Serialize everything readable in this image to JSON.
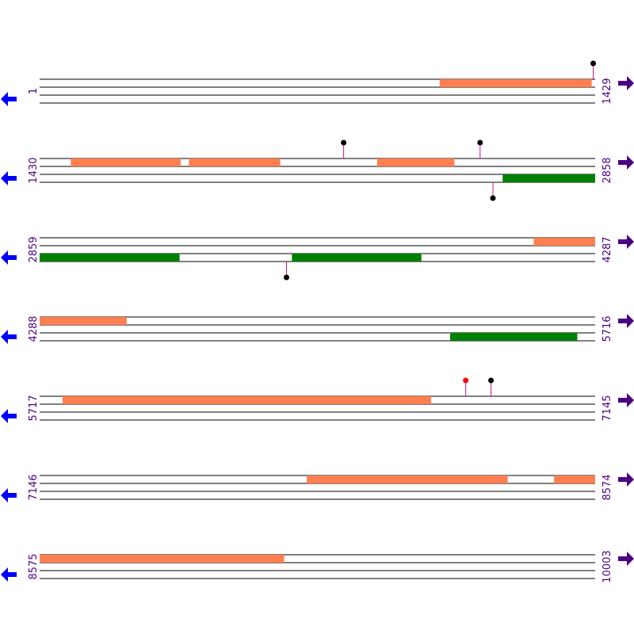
{
  "map": {
    "colors": {
      "forward_feature": "#ff7f50",
      "reverse_feature": "#008000",
      "track_line": "#000000",
      "marker_stem": "#c71585",
      "marker_default": "#000000",
      "marker_highlight": "#ff0000",
      "forward_arrow": "#4b0082",
      "reverse_arrow": "#0000ff"
    },
    "rows": [
      {
        "start_label": "1",
        "end_label": "1429",
        "start": 1,
        "end": 1429,
        "forward": [
          [
            1030,
            1420
          ]
        ],
        "reverse": [],
        "markers_above": [
          {
            "pos": 1425,
            "color": "marker_default"
          }
        ],
        "markers_below": []
      },
      {
        "start_label": "1430",
        "end_label": "2858",
        "start": 1430,
        "end": 2858,
        "forward": [
          [
            1510,
            1792
          ],
          [
            1814,
            2048
          ],
          [
            2298,
            2496
          ]
        ],
        "reverse": [
          [
            2621,
            2858
          ]
        ],
        "markers_above": [
          {
            "pos": 2212,
            "color": "marker_default"
          },
          {
            "pos": 2563,
            "color": "marker_default"
          }
        ],
        "markers_below": [
          {
            "pos": 2596,
            "color": "marker_default"
          }
        ]
      },
      {
        "start_label": "2859",
        "end_label": "4287",
        "start": 2859,
        "end": 4287,
        "forward": [
          [
            4130,
            4287
          ]
        ],
        "reverse": [
          [
            2859,
            3218
          ],
          [
            3508,
            3840
          ]
        ],
        "markers_above": [],
        "markers_below": [
          {
            "pos": 3494,
            "color": "marker_default"
          }
        ]
      },
      {
        "start_label": "4288",
        "end_label": "5716",
        "start": 4288,
        "end": 5716,
        "forward": [
          [
            4288,
            4511
          ]
        ],
        "reverse": [
          [
            5344,
            5670
          ]
        ],
        "markers_above": [],
        "markers_below": []
      },
      {
        "start_label": "5717",
        "end_label": "7145",
        "start": 5717,
        "end": 7145,
        "forward": [
          [
            5776,
            6723
          ]
        ],
        "reverse": [],
        "markers_above": [
          {
            "pos": 6813,
            "color": "marker_highlight"
          },
          {
            "pos": 6878,
            "color": "marker_default"
          }
        ],
        "markers_below": []
      },
      {
        "start_label": "7146",
        "end_label": "8574",
        "start": 7146,
        "end": 8574,
        "forward": [
          [
            7833,
            8349
          ],
          [
            8469,
            8574
          ]
        ],
        "reverse": [],
        "markers_above": [],
        "markers_below": []
      },
      {
        "start_label": "8575",
        "end_label": "10003",
        "start": 8575,
        "end": 10003,
        "forward": [
          [
            8575,
            9203
          ]
        ],
        "reverse": [],
        "markers_above": [],
        "markers_below": []
      }
    ]
  }
}
